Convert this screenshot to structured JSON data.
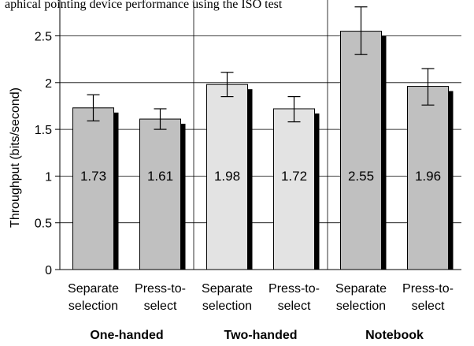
{
  "caption": "aphical pointing device performance using the ISO test",
  "chart_data": {
    "type": "bar",
    "ylabel": "Throughput (bits/second)",
    "ylim": [
      0,
      2.7
    ],
    "yticks": [
      "0",
      "0.5",
      "1",
      "1.5",
      "2",
      "2.5"
    ],
    "grid": true,
    "groups": [
      {
        "name": "One-handed",
        "bars": [
          {
            "label_lines": [
              "Separate",
              "selection"
            ],
            "value": 1.73,
            "label": "1.73",
            "err_low": 1.59,
            "err_high": 1.87,
            "color": "#c0c0c0"
          },
          {
            "label_lines": [
              "Press-to-",
              "select"
            ],
            "value": 1.61,
            "label": "1.61",
            "err_low": 1.5,
            "err_high": 1.72,
            "color": "#c0c0c0"
          }
        ]
      },
      {
        "name": "Two-handed",
        "bars": [
          {
            "label_lines": [
              "Separate",
              "selection"
            ],
            "value": 1.98,
            "label": "1.98",
            "err_low": 1.85,
            "err_high": 2.11,
            "color": "#e3e3e3"
          },
          {
            "label_lines": [
              "Press-to-",
              "select"
            ],
            "value": 1.72,
            "label": "1.72",
            "err_low": 1.58,
            "err_high": 1.85,
            "color": "#e3e3e3"
          }
        ]
      },
      {
        "name": "Notebook",
        "bars": [
          {
            "label_lines": [
              "Separate",
              "selection"
            ],
            "value": 2.55,
            "label": "2.55",
            "err_low": 2.3,
            "err_high": 2.81,
            "color": "#c0c0c0"
          },
          {
            "label_lines": [
              "Press-to-",
              "select"
            ],
            "value": 1.96,
            "label": "1.96",
            "err_low": 1.76,
            "err_high": 2.15,
            "color": "#c0c0c0"
          }
        ]
      }
    ]
  }
}
